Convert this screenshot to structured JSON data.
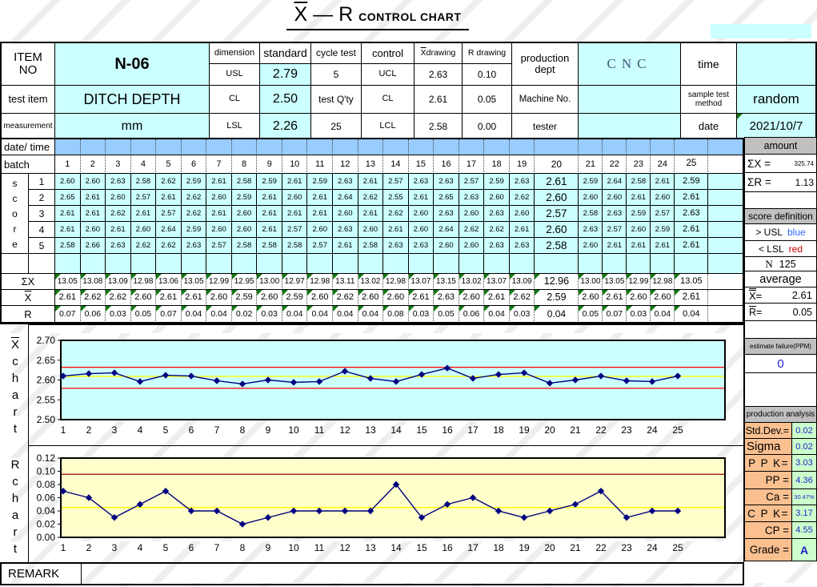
{
  "title": {
    "x": "X",
    "rest": " — R ",
    "suffix": "CONTROL CHART"
  },
  "info": {
    "item_no_label": "ITEM\nNO",
    "item_no": "N-06",
    "test_item_label": "test item",
    "test_item": "DITCH DEPTH",
    "measurement_label": "measurement",
    "measurement": "mm",
    "dimension_label": "dimension",
    "usl_label": "USL",
    "usl": "2.79",
    "cl_label": "CL",
    "cl": "2.50",
    "lsl_label": "LSL",
    "lsl": "2.26",
    "standard_label": "standard",
    "cycle_test_label": "cycle test",
    "cycle_test": "5",
    "test_qty_label": "test Q'ty",
    "test_qty": "25",
    "control_label": "control",
    "ucl_label": "UCL",
    "ctl_cl_label": "CL",
    "lcl_label": "LCL",
    "x_drawing_sym": "X",
    "x_drawing_rest": " drawing",
    "xd_ucl": "2.63",
    "xd_cl": "2.61",
    "xd_lcl": "2.58",
    "r_drawing_label": "R drawing",
    "rd_ucl": "0.10",
    "rd_cl": "0.05",
    "rd_lcl": "0.00",
    "production_dept_label": "production\ndept",
    "machine_no_label": "Machine No.",
    "tester_label": "tester",
    "cnc": "CNC",
    "time_label": "time",
    "sample_test_method_label": "sample test method",
    "sample_test_method": "random",
    "date_label": "date",
    "date": "2021/10/7"
  },
  "data_table": {
    "date_time_label": "date/ time",
    "batch_label": "batch",
    "score_label": "score",
    "score_rows": [
      "1",
      "2",
      "3",
      "4",
      "5"
    ],
    "batches": [
      "1",
      "2",
      "3",
      "4",
      "5",
      "6",
      "7",
      "8",
      "9",
      "10",
      "11",
      "12",
      "13",
      "14",
      "15",
      "16",
      "17",
      "18",
      "19",
      "20",
      "21",
      "22",
      "23",
      "24",
      "25"
    ],
    "scores": [
      [
        "2.60",
        "2.60",
        "2.63",
        "2.58",
        "2.62",
        "2.59",
        "2.61",
        "2.58",
        "2.59",
        "2.61",
        "2.59",
        "2.63",
        "2.61",
        "2.57",
        "2.63",
        "2.63",
        "2.57",
        "2.59",
        "2.63",
        "2.61",
        "2.59",
        "2.64",
        "2.58",
        "2.61",
        "2.59"
      ],
      [
        "2.65",
        "2.61",
        "2.60",
        "2.57",
        "2.61",
        "2.62",
        "2.60",
        "2.59",
        "2.61",
        "2.60",
        "2.61",
        "2.64",
        "2.62",
        "2.55",
        "2.61",
        "2.65",
        "2.63",
        "2.60",
        "2.62",
        "2.60",
        "2.60",
        "2.60",
        "2.61",
        "2.60",
        "2.61"
      ],
      [
        "2.61",
        "2.61",
        "2.62",
        "2.61",
        "2.57",
        "2.62",
        "2.61",
        "2.60",
        "2.61",
        "2.61",
        "2.61",
        "2.60",
        "2.61",
        "2.62",
        "2.60",
        "2.63",
        "2.60",
        "2.63",
        "2.60",
        "2.57",
        "2.58",
        "2.63",
        "2.59",
        "2.57",
        "2.63"
      ],
      [
        "2.61",
        "2.60",
        "2.61",
        "2.60",
        "2.64",
        "2.59",
        "2.60",
        "2.60",
        "2.61",
        "2.57",
        "2.60",
        "2.63",
        "2.60",
        "2.61",
        "2.60",
        "2.64",
        "2.62",
        "2.62",
        "2.61",
        "2.60",
        "2.63",
        "2.57",
        "2.60",
        "2.59",
        "2.61"
      ],
      [
        "2.58",
        "2.66",
        "2.63",
        "2.62",
        "2.62",
        "2.63",
        "2.57",
        "2.58",
        "2.58",
        "2.58",
        "2.57",
        "2.61",
        "2.58",
        "2.63",
        "2.63",
        "2.60",
        "2.60",
        "2.63",
        "2.63",
        "2.58",
        "2.60",
        "2.61",
        "2.61",
        "2.61",
        "2.61"
      ]
    ],
    "sum_label": "ΣX",
    "sums": [
      "13.05",
      "13.08",
      "13.09",
      "12.98",
      "13.06",
      "13.05",
      "12.99",
      "12.95",
      "13.00",
      "12.97",
      "12.98",
      "13.11",
      "13.02",
      "12.98",
      "13.07",
      "13.15",
      "13.02",
      "13.07",
      "13.09",
      "12.96",
      "13.00",
      "13.05",
      "12.99",
      "12.98",
      "13.05"
    ],
    "xbar_label": "X",
    "xbars": [
      "2.61",
      "2.62",
      "2.62",
      "2.60",
      "2.61",
      "2.61",
      "2.60",
      "2.59",
      "2.60",
      "2.59",
      "2.60",
      "2.62",
      "2.60",
      "2.60",
      "2.61",
      "2.63",
      "2.60",
      "2.61",
      "2.62",
      "2.59",
      "2.60",
      "2.61",
      "2.60",
      "2.60",
      "2.61"
    ],
    "r_label": "R",
    "rs": [
      "0.07",
      "0.06",
      "0.03",
      "0.05",
      "0.07",
      "0.04",
      "0.04",
      "0.02",
      "0.03",
      "0.04",
      "0.04",
      "0.04",
      "0.04",
      "0.08",
      "0.03",
      "0.05",
      "0.06",
      "0.04",
      "0.03",
      "0.04",
      "0.05",
      "0.07",
      "0.03",
      "0.04",
      "0.04"
    ]
  },
  "sidebar": {
    "amount_label": "amount",
    "sum_x_label": "ΣX =",
    "sum_x": "325.74",
    "sum_r_label": "ΣR =",
    "sum_r": "1.13",
    "score_def_label": "score definition",
    "usl_cond": "> USL",
    "usl_word": "blue",
    "lsl_cond": "< LSL",
    "lsl_word": "red",
    "n_label": "N",
    "n_value": "125",
    "average_label": "average",
    "xbarbar_eq": "=",
    "xbarbar": "2.61",
    "rbar_eq": "=",
    "rbar": "0.05",
    "ppm_label": "estimate failure(PPM)",
    "ppm_value": "0",
    "analysis_label": "production analysis",
    "stats": [
      {
        "label": "Std.Dev.=",
        "value": "0.02"
      },
      {
        "label": "Sigma",
        "value": "0.02"
      },
      {
        "label": "P P K=",
        "value": "3.03"
      },
      {
        "label": "PP =",
        "value": "4.36"
      },
      {
        "label": "Ca =",
        "value": "30.47%"
      },
      {
        "label": "C P K=",
        "value": "3.17"
      },
      {
        "label": "CP =",
        "value": "4.55"
      },
      {
        "label": "Grade =",
        "value": "A"
      }
    ]
  },
  "sym": {
    "x": "X",
    "r": "R"
  },
  "remark_label": "REMARK",
  "chart_data": [
    {
      "name": "xbar-chart",
      "type": "line",
      "side_label": "X chart",
      "side_label_overline": true,
      "x": [
        "1",
        "2",
        "3",
        "4",
        "5",
        "6",
        "7",
        "8",
        "9",
        "10",
        "11",
        "12",
        "13",
        "14",
        "15",
        "16",
        "17",
        "18",
        "19",
        "20",
        "21",
        "22",
        "23",
        "24",
        "25"
      ],
      "values": [
        2.61,
        2.616,
        2.618,
        2.596,
        2.612,
        2.61,
        2.598,
        2.59,
        2.6,
        2.594,
        2.596,
        2.622,
        2.604,
        2.596,
        2.614,
        2.63,
        2.604,
        2.614,
        2.618,
        2.592,
        2.6,
        2.61,
        2.598,
        2.596,
        2.61
      ],
      "ylim": [
        2.5,
        2.7
      ],
      "yticks": [
        2.5,
        2.55,
        2.6,
        2.65,
        2.7
      ],
      "ucl_line": 2.632,
      "cl_line": 2.609,
      "lcl_line": 2.579,
      "ucl_value_labeled": "2.63",
      "cl_value_labeled": "2.61",
      "lcl_value_labeled": "2.58",
      "bg": "#CCFFFF",
      "line_color": "#000080",
      "marker": "diamond",
      "ucl_color": "#FF0000",
      "cl_color": "#FFFF00",
      "lcl_color": "#FF0000",
      "grid": false,
      "legend": false
    },
    {
      "name": "r-chart",
      "type": "line",
      "side_label": "R chart",
      "side_label_overline": false,
      "x": [
        "1",
        "2",
        "3",
        "4",
        "5",
        "6",
        "7",
        "8",
        "9",
        "10",
        "11",
        "12",
        "13",
        "14",
        "15",
        "16",
        "17",
        "18",
        "19",
        "20",
        "21",
        "22",
        "23",
        "24",
        "25"
      ],
      "values": [
        0.07,
        0.06,
        0.03,
        0.05,
        0.07,
        0.04,
        0.04,
        0.02,
        0.03,
        0.04,
        0.04,
        0.04,
        0.04,
        0.08,
        0.03,
        0.05,
        0.06,
        0.04,
        0.03,
        0.04,
        0.05,
        0.07,
        0.03,
        0.04,
        0.04
      ],
      "ylim": [
        0.0,
        0.12
      ],
      "yticks": [
        0.0,
        0.02,
        0.04,
        0.06,
        0.08,
        0.1,
        0.12
      ],
      "ucl_line": 0.0955,
      "cl_line": 0.0452,
      "lcl_line": null,
      "ucl_value_labeled": "0.10",
      "cl_value_labeled": "0.05",
      "lcl_value_labeled": "0.00",
      "bg": "#FFFFCC",
      "line_color": "#000080",
      "marker": "diamond",
      "ucl_color": "#990000",
      "cl_color": "#FFFF00",
      "lcl_color": null,
      "grid": false,
      "legend": false
    }
  ]
}
